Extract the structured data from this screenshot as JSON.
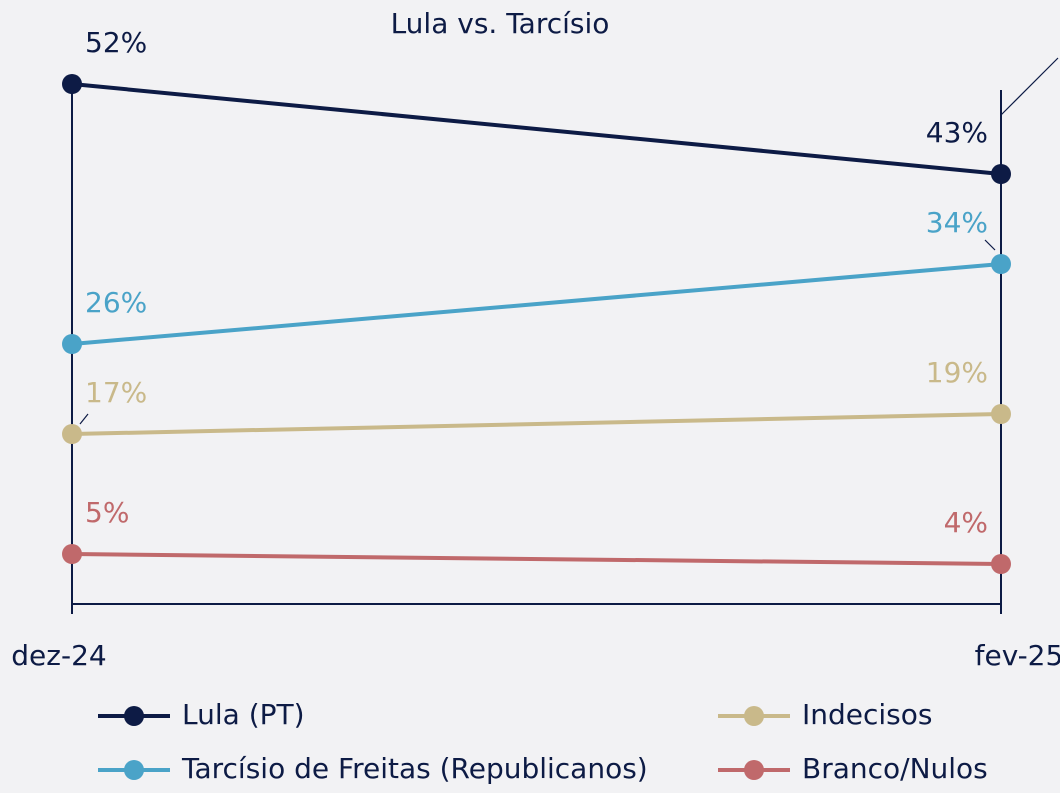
{
  "chart_data": {
    "type": "line",
    "title": "Lula vs. Tarcísio",
    "categories": [
      "dez-24",
      "fev-25"
    ],
    "ylim": [
      0,
      60
    ],
    "series": [
      {
        "name": "Lula (PT)",
        "color": "#0d1b45",
        "values": [
          52,
          43
        ],
        "value_labels": [
          "52%",
          "43%"
        ]
      },
      {
        "name": "Tarcísio de Freitas (Republicanos)",
        "color": "#4aa3c8",
        "values": [
          26,
          34
        ],
        "value_labels": [
          "26%",
          "34%"
        ]
      },
      {
        "name": "Indecisos",
        "color": "#c9b98a",
        "values": [
          17,
          19
        ],
        "value_labels": [
          "17%",
          "19%"
        ]
      },
      {
        "name": "Branco/Nulos",
        "color": "#c0696b",
        "values": [
          5,
          4
        ],
        "value_labels": [
          "5%",
          "4%"
        ]
      }
    ]
  }
}
